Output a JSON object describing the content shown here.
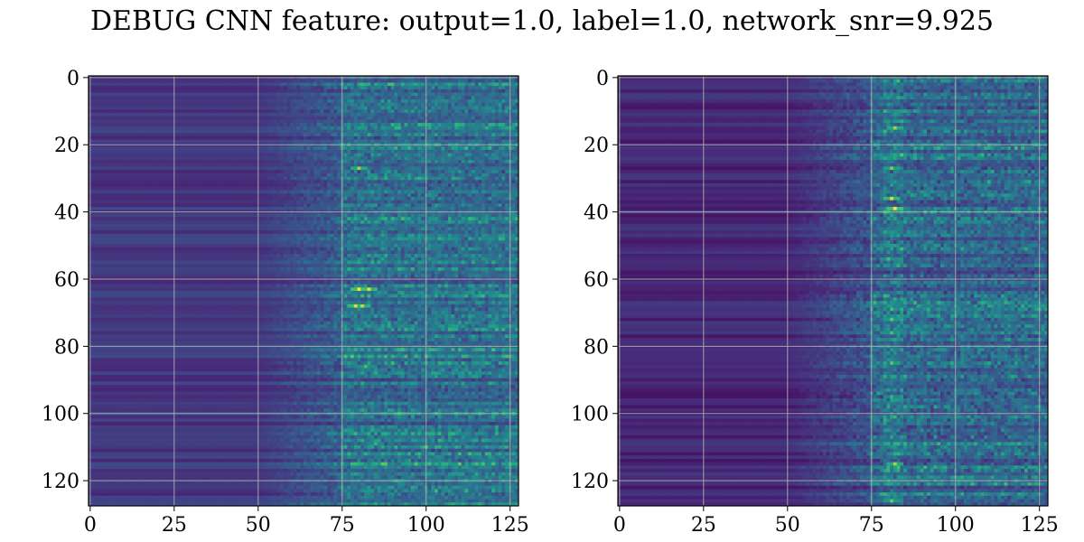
{
  "figure": {
    "title": "DEBUG CNN feature: output=1.0, label=1.0, network_snr=9.925"
  },
  "chart_data": [
    {
      "type": "heatmap",
      "title": "",
      "xlabel": "",
      "ylabel": "",
      "shape": [
        128,
        128
      ],
      "xlim": [
        0,
        127
      ],
      "ylim": [
        127,
        0
      ],
      "xticks": [
        0,
        25,
        50,
        75,
        100,
        125
      ],
      "yticks": [
        0,
        20,
        40,
        60,
        80,
        100,
        120
      ],
      "grid": true,
      "colormap": "viridis",
      "onset_column": 50,
      "bright_region_columns": [
        75,
        127
      ],
      "hotspots": [
        {
          "row": 27,
          "col": 80,
          "level": 0.85
        },
        {
          "row": 43,
          "col": 81,
          "level": 0.6
        },
        {
          "row": 63,
          "col": 80,
          "level": 1.0
        },
        {
          "row": 63,
          "col": 83,
          "level": 0.95
        },
        {
          "row": 68,
          "col": 79,
          "level": 0.95
        },
        {
          "row": 68,
          "col": 81,
          "level": 0.9
        },
        {
          "row": 86,
          "col": 82,
          "level": 0.7
        },
        {
          "row": 109,
          "col": 85,
          "level": 0.65
        }
      ]
    },
    {
      "type": "heatmap",
      "title": "",
      "xlabel": "",
      "ylabel": "",
      "shape": [
        128,
        128
      ],
      "xlim": [
        0,
        127
      ],
      "ylim": [
        127,
        0
      ],
      "xticks": [
        0,
        25,
        50,
        75,
        100,
        125
      ],
      "yticks": [
        0,
        20,
        40,
        60,
        80,
        100,
        120
      ],
      "grid": true,
      "colormap": "viridis",
      "onset_column": 50,
      "bright_region_columns": [
        75,
        127
      ],
      "hotspots": [
        {
          "row": 15,
          "col": 82,
          "level": 0.85
        },
        {
          "row": 27,
          "col": 81,
          "level": 0.8
        },
        {
          "row": 36,
          "col": 81,
          "level": 0.95
        },
        {
          "row": 39,
          "col": 82,
          "level": 1.0
        },
        {
          "row": 54,
          "col": 80,
          "level": 0.7
        },
        {
          "row": 72,
          "col": 81,
          "level": 0.75
        },
        {
          "row": 76,
          "col": 81,
          "level": 0.7
        },
        {
          "row": 95,
          "col": 81,
          "level": 0.65
        },
        {
          "row": 115,
          "col": 82,
          "level": 0.85
        },
        {
          "row": 126,
          "col": 81,
          "level": 0.75
        }
      ]
    }
  ]
}
